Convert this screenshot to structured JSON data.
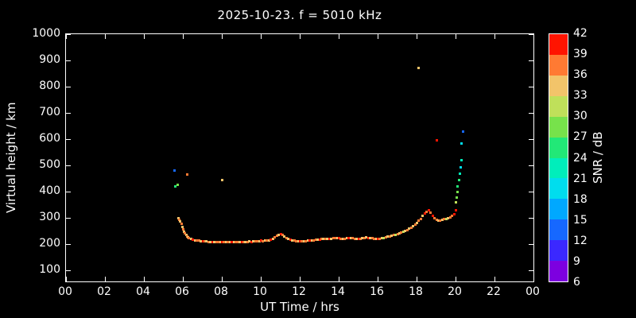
{
  "background": "#000000",
  "text_color": "#ffffff",
  "chart_data": {
    "type": "scatter",
    "title": "2025-10-23. f = 5010 kHz",
    "xlabel": "UT Time / hrs",
    "ylabel": "Virtual height / km",
    "colorbar_label": "SNR / dB",
    "xlim": [
      0,
      24
    ],
    "ylim": [
      58,
      1000
    ],
    "grid": false,
    "x_tick_labels": [
      "00",
      "02",
      "04",
      "06",
      "08",
      "10",
      "12",
      "14",
      "16",
      "18",
      "20",
      "22",
      "00"
    ],
    "x_tick_values": [
      0,
      2,
      4,
      6,
      8,
      10,
      12,
      14,
      16,
      18,
      20,
      22,
      24
    ],
    "y_tick_values": [
      100,
      200,
      300,
      400,
      500,
      600,
      700,
      800,
      900,
      1000
    ],
    "colorbar": {
      "min": 6,
      "max": 42,
      "tick_step": 3,
      "ticks": [
        42,
        39,
        36,
        33,
        30,
        27,
        24,
        21,
        18,
        15,
        12,
        9,
        6
      ],
      "colors_bottom_to_top": [
        "#7d00e0",
        "#3b28ff",
        "#1668ff",
        "#00a8ff",
        "#00ddee",
        "#00eebb",
        "#22e877",
        "#77e24b",
        "#bfe05a",
        "#f2c46a",
        "#ff7a33",
        "#ff1400"
      ]
    },
    "points_format": [
      "ut_hours",
      "virtual_height_km",
      "snr_db"
    ],
    "points": [
      [
        5.55,
        482,
        13
      ],
      [
        5.6,
        420,
        25
      ],
      [
        5.7,
        428,
        29
      ],
      [
        5.75,
        300,
        34
      ],
      [
        5.8,
        295,
        36
      ],
      [
        5.85,
        288,
        33
      ],
      [
        5.9,
        280,
        37
      ],
      [
        5.95,
        268,
        34
      ],
      [
        6.0,
        258,
        36
      ],
      [
        6.05,
        250,
        33
      ],
      [
        6.1,
        242,
        37
      ],
      [
        6.15,
        236,
        34
      ],
      [
        6.2,
        232,
        36
      ],
      [
        6.25,
        228,
        33
      ],
      [
        6.2,
        466,
        38
      ],
      [
        6.3,
        226,
        36
      ],
      [
        6.4,
        222,
        33
      ],
      [
        6.5,
        219,
        39
      ],
      [
        6.6,
        217,
        34
      ],
      [
        6.7,
        215,
        36
      ],
      [
        6.8,
        214,
        37
      ],
      [
        6.9,
        213,
        33
      ],
      [
        7.0,
        212,
        40
      ],
      [
        7.1,
        211,
        36
      ],
      [
        7.2,
        211,
        34
      ],
      [
        7.3,
        210,
        36
      ],
      [
        7.4,
        210,
        33
      ],
      [
        7.5,
        210,
        39
      ],
      [
        7.6,
        209,
        34
      ],
      [
        7.7,
        210,
        36
      ],
      [
        7.8,
        209,
        37
      ],
      [
        7.9,
        210,
        33
      ],
      [
        8.0,
        210,
        40
      ],
      [
        8.0,
        446,
        34
      ],
      [
        8.1,
        209,
        36
      ],
      [
        8.2,
        210,
        34
      ],
      [
        8.3,
        208,
        36
      ],
      [
        8.4,
        209,
        33
      ],
      [
        8.5,
        210,
        39
      ],
      [
        8.6,
        209,
        34
      ],
      [
        8.7,
        208,
        36
      ],
      [
        8.8,
        209,
        37
      ],
      [
        8.9,
        210,
        33
      ],
      [
        9.0,
        209,
        40
      ],
      [
        9.1,
        208,
        36
      ],
      [
        9.2,
        209,
        34
      ],
      [
        9.3,
        210,
        36
      ],
      [
        9.4,
        211,
        33
      ],
      [
        9.5,
        210,
        39
      ],
      [
        9.6,
        211,
        34
      ],
      [
        9.7,
        212,
        36
      ],
      [
        9.8,
        212,
        37
      ],
      [
        9.9,
        213,
        33
      ],
      [
        10.0,
        214,
        40
      ],
      [
        10.1,
        213,
        36
      ],
      [
        10.2,
        214,
        34
      ],
      [
        10.3,
        215,
        36
      ],
      [
        10.4,
        216,
        33
      ],
      [
        10.5,
        218,
        39
      ],
      [
        10.6,
        222,
        34
      ],
      [
        10.7,
        228,
        36
      ],
      [
        10.8,
        234,
        37
      ],
      [
        10.9,
        238,
        33
      ],
      [
        11.0,
        240,
        40
      ],
      [
        11.1,
        238,
        36
      ],
      [
        11.2,
        232,
        34
      ],
      [
        11.3,
        226,
        36
      ],
      [
        11.4,
        222,
        33
      ],
      [
        11.5,
        218,
        39
      ],
      [
        11.6,
        216,
        34
      ],
      [
        11.7,
        214,
        36
      ],
      [
        11.8,
        213,
        37
      ],
      [
        11.9,
        212,
        33
      ],
      [
        12.0,
        212,
        40
      ],
      [
        12.1,
        211,
        36
      ],
      [
        12.2,
        212,
        34
      ],
      [
        12.3,
        213,
        36
      ],
      [
        12.4,
        214,
        33
      ],
      [
        12.5,
        215,
        39
      ],
      [
        12.6,
        216,
        34
      ],
      [
        12.7,
        217,
        36
      ],
      [
        12.8,
        218,
        37
      ],
      [
        12.9,
        219,
        33
      ],
      [
        13.0,
        220,
        40
      ],
      [
        13.1,
        221,
        36
      ],
      [
        13.2,
        222,
        34
      ],
      [
        13.3,
        223,
        36
      ],
      [
        13.4,
        222,
        33
      ],
      [
        13.5,
        221,
        39
      ],
      [
        13.6,
        222,
        34
      ],
      [
        13.7,
        224,
        36
      ],
      [
        13.8,
        226,
        37
      ],
      [
        13.9,
        225,
        33
      ],
      [
        14.0,
        224,
        40
      ],
      [
        14.1,
        223,
        36
      ],
      [
        14.2,
        222,
        34
      ],
      [
        14.3,
        223,
        36
      ],
      [
        14.4,
        225,
        33
      ],
      [
        14.5,
        226,
        39
      ],
      [
        14.6,
        225,
        34
      ],
      [
        14.7,
        224,
        36
      ],
      [
        14.8,
        223,
        37
      ],
      [
        14.9,
        222,
        33
      ],
      [
        15.0,
        221,
        40
      ],
      [
        15.1,
        222,
        36
      ],
      [
        15.2,
        224,
        34
      ],
      [
        15.3,
        226,
        36
      ],
      [
        15.4,
        227,
        33
      ],
      [
        15.5,
        226,
        39
      ],
      [
        15.6,
        225,
        34
      ],
      [
        15.7,
        224,
        36
      ],
      [
        15.8,
        223,
        37
      ],
      [
        15.9,
        222,
        33
      ],
      [
        16.0,
        221,
        40
      ],
      [
        16.1,
        222,
        36
      ],
      [
        16.2,
        224,
        34
      ],
      [
        16.3,
        226,
        30
      ],
      [
        16.4,
        228,
        36
      ],
      [
        16.5,
        230,
        33
      ],
      [
        16.6,
        232,
        37
      ],
      [
        16.7,
        234,
        34
      ],
      [
        16.8,
        236,
        36
      ],
      [
        16.9,
        238,
        30
      ],
      [
        17.0,
        240,
        36
      ],
      [
        17.1,
        242,
        33
      ],
      [
        17.2,
        245,
        37
      ],
      [
        17.3,
        248,
        30
      ],
      [
        17.4,
        252,
        34
      ],
      [
        17.5,
        256,
        36
      ],
      [
        17.6,
        260,
        33
      ],
      [
        17.7,
        265,
        37
      ],
      [
        17.8,
        270,
        34
      ],
      [
        17.9,
        276,
        36
      ],
      [
        18.0,
        282,
        33
      ],
      [
        18.1,
        290,
        37
      ],
      [
        18.2,
        298,
        36
      ],
      [
        18.3,
        308,
        34
      ],
      [
        18.4,
        318,
        39
      ],
      [
        18.5,
        326,
        37
      ],
      [
        18.6,
        330,
        40
      ],
      [
        18.7,
        322,
        36
      ],
      [
        18.8,
        308,
        39
      ],
      [
        18.9,
        300,
        37
      ],
      [
        18.1,
        872,
        34
      ],
      [
        19.0,
        295,
        36
      ],
      [
        19.1,
        292,
        34
      ],
      [
        19.2,
        292,
        37
      ],
      [
        19.3,
        294,
        33
      ],
      [
        19.4,
        296,
        36
      ],
      [
        19.5,
        298,
        30
      ],
      [
        19.6,
        300,
        34
      ],
      [
        19.7,
        304,
        36
      ],
      [
        19.8,
        308,
        37
      ],
      [
        19.9,
        315,
        39
      ],
      [
        19.0,
        598,
        40
      ],
      [
        20.0,
        330,
        40
      ],
      [
        20.0,
        360,
        30
      ],
      [
        20.05,
        380,
        27
      ],
      [
        20.1,
        400,
        28
      ],
      [
        20.1,
        420,
        25
      ],
      [
        20.15,
        445,
        26
      ],
      [
        20.2,
        470,
        23
      ],
      [
        20.25,
        495,
        20
      ],
      [
        20.3,
        520,
        21
      ],
      [
        20.3,
        585,
        19
      ],
      [
        20.35,
        630,
        13
      ]
    ]
  }
}
